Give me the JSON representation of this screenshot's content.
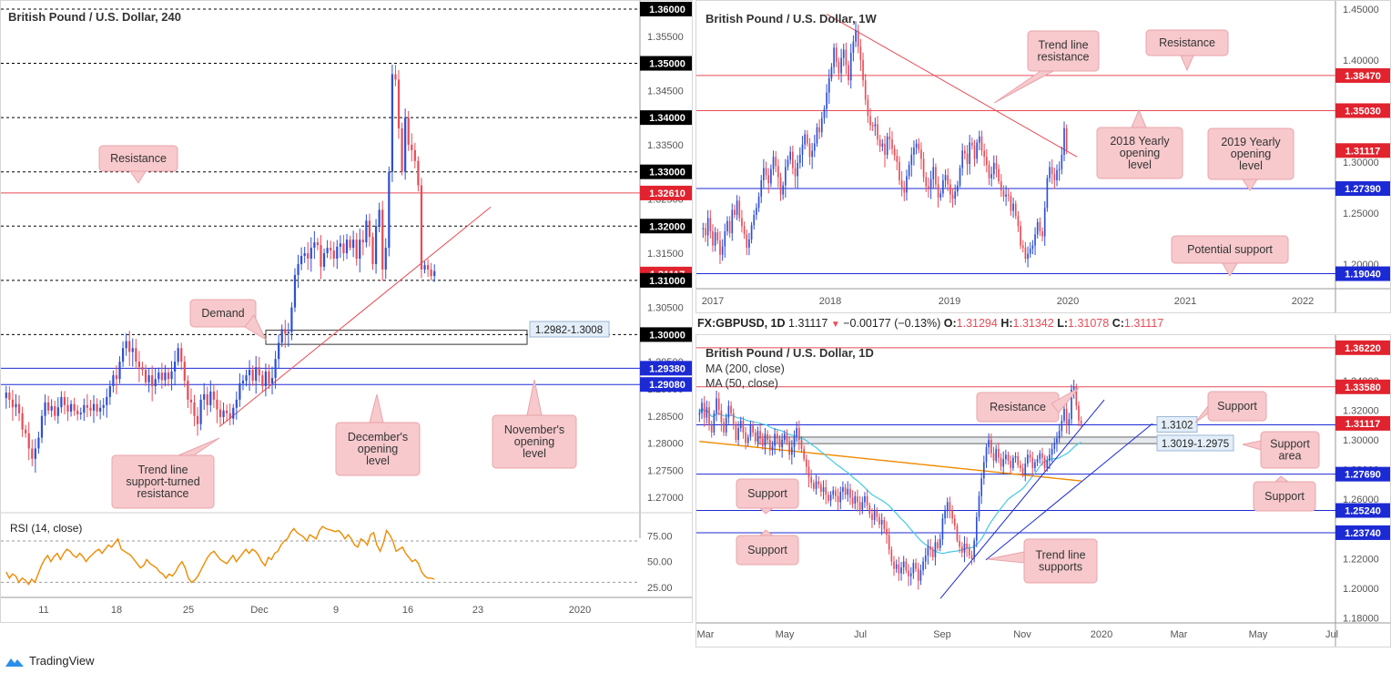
{
  "brand": {
    "name": "TradingView"
  },
  "colors": {
    "up": "#2d4fd6",
    "down": "#e84b56",
    "callout_fill": "#f7c9cc",
    "callout_border": "#e8a4aa",
    "label_red": "#e0232e",
    "label_blue": "#1c2ad4",
    "label_black": "#000000",
    "rsi": "#f08a00",
    "ma200": "#f08a00",
    "ma50": "#46c8e6"
  },
  "header_strip": {
    "symbol": "FX:GBPUSD, 1D",
    "last": "1.31117",
    "arrow": "▼",
    "change": "−0.00177 (−0.13%)",
    "o_label": "O:",
    "o": "1.31294",
    "h_label": "H:",
    "h": "1.31342",
    "l_label": "L:",
    "l": "1.31078",
    "c_label": "C:",
    "c": "1.31117"
  },
  "chart_data": [
    {
      "id": "h4",
      "type": "candlestick",
      "title": "British Pound / U.S. Dollar, 240",
      "ylim": [
        1.2675,
        1.3605
      ],
      "ticks": [
        "1.36000",
        "1.35500",
        "1.35000",
        "1.34500",
        "1.34000",
        "1.33500",
        "1.33000",
        "1.32500",
        "1.32000",
        "1.31500",
        "1.31000",
        "1.30500",
        "1.30000",
        "1.29500",
        "1.29000",
        "1.28500",
        "1.28000",
        "1.27500",
        "1.27000"
      ],
      "x_ticks": [
        "11",
        "18",
        "25",
        "Dec",
        "9",
        "16",
        "23",
        "2020"
      ],
      "levels": [
        {
          "value": 1.36,
          "label": "1.36000",
          "style": "black-dotted"
        },
        {
          "value": 1.35,
          "label": "1.35000",
          "style": "black-dotted"
        },
        {
          "value": 1.34,
          "label": "1.34000",
          "style": "black-dotted"
        },
        {
          "value": 1.33,
          "label": "1.33000",
          "style": "black-dotted"
        },
        {
          "value": 1.3261,
          "label": "1.32610",
          "style": "red"
        },
        {
          "value": 1.32,
          "label": "1.32000",
          "style": "black-dotted"
        },
        {
          "value": 1.31117,
          "label": "1.31117",
          "style": "red-tag-only"
        },
        {
          "value": 1.31,
          "label": "1.31000",
          "style": "black-dotted"
        },
        {
          "value": 1.3,
          "label": "1.30000",
          "style": "black-dotted"
        },
        {
          "value": 1.2938,
          "label": "1.29380",
          "style": "blue"
        },
        {
          "value": 1.2908,
          "label": "1.29080",
          "style": "blue"
        }
      ],
      "zone": {
        "label": "1.2982-1.3008",
        "from": 1.2982,
        "to": 1.3008
      },
      "callouts": [
        "Resistance",
        "Demand",
        "Trend line support-turned resistance",
        "December's opening level",
        "November's opening level"
      ],
      "closes": [
        1.2893,
        1.288,
        1.2866,
        1.2872,
        1.2855,
        1.2825,
        1.2818,
        1.279,
        1.2771,
        1.279,
        1.281,
        1.285,
        1.2875,
        1.286,
        1.2868,
        1.285,
        1.2866,
        1.2885,
        1.287,
        1.2858,
        1.2872,
        1.286,
        1.2853,
        1.2856,
        1.287,
        1.2865,
        1.286,
        1.2872,
        1.2858,
        1.2865,
        1.287,
        1.2885,
        1.2905,
        1.2925,
        1.2918,
        1.295,
        1.2975,
        1.2988,
        1.2968,
        1.2975,
        1.295,
        1.294,
        1.2935,
        1.2912,
        1.2925,
        1.2905,
        1.2918,
        1.293,
        1.2916,
        1.293,
        1.2918,
        1.2932,
        1.295,
        1.2975,
        1.295,
        1.2915,
        1.288,
        1.2875,
        1.285,
        1.2835,
        1.288,
        1.289,
        1.287,
        1.2895,
        1.288,
        1.2862,
        1.2848,
        1.286,
        1.2855,
        1.2845,
        1.2865,
        1.288,
        1.291,
        1.2915,
        1.2925,
        1.2935,
        1.2915,
        1.294,
        1.2925,
        1.2905,
        1.2932,
        1.291,
        1.292,
        1.2955,
        1.2985,
        1.301,
        1.3002,
        1.3005,
        1.305,
        1.311,
        1.313,
        1.3145,
        1.315,
        1.314,
        1.316,
        1.317,
        1.3165,
        1.3125,
        1.315,
        1.316,
        1.3155,
        1.314,
        1.3162,
        1.3168,
        1.315,
        1.3175,
        1.316,
        1.3175,
        1.314,
        1.3175,
        1.317,
        1.321,
        1.318,
        1.313,
        1.32,
        1.323,
        1.312,
        1.316,
        1.33,
        1.348,
        1.347,
        1.338,
        1.33,
        1.34,
        1.335,
        1.334,
        1.332,
        1.3275,
        1.312,
        1.3128,
        1.312,
        1.3108,
        1.3117
      ]
    },
    {
      "id": "rsi",
      "type": "line",
      "title": "RSI (14, close)",
      "ylim": [
        18,
        92
      ],
      "ticks": [
        "75.00",
        "50.00",
        "25.00"
      ],
      "levels": [
        70,
        30
      ],
      "values": [
        40,
        34,
        38,
        36,
        30,
        34,
        32,
        28,
        33,
        30,
        38,
        46,
        52,
        56,
        50,
        55,
        58,
        52,
        58,
        62,
        60,
        56,
        54,
        58,
        55,
        50,
        54,
        57,
        60,
        62,
        58,
        62,
        66,
        64,
        68,
        72,
        62,
        60,
        58,
        56,
        52,
        48,
        44,
        46,
        52,
        48,
        46,
        44,
        40,
        38,
        34,
        38,
        36,
        40,
        46,
        50,
        44,
        34,
        30,
        32,
        36,
        42,
        48,
        54,
        58,
        60,
        56,
        52,
        50,
        48,
        52,
        56,
        50,
        54,
        58,
        62,
        58,
        62,
        60,
        56,
        50,
        46,
        54,
        52,
        58,
        60,
        66,
        70,
        72,
        78,
        82,
        78,
        76,
        74,
        70,
        76,
        74,
        72,
        80,
        84,
        82,
        81,
        80,
        79,
        80,
        77,
        72,
        76,
        72,
        66,
        64,
        72,
        70,
        66,
        76,
        78,
        66,
        60,
        68,
        80,
        76,
        70,
        60,
        62,
        64,
        58,
        54,
        50,
        52,
        48,
        40,
        36,
        34,
        34,
        33
      ]
    },
    {
      "id": "w1",
      "type": "candlestick",
      "title": "British Pound / U.S. Dollar, 1W",
      "ylim": [
        1.1775,
        1.4525
      ],
      "ticks": [
        "1.45000",
        "1.40000",
        "1.35000",
        "1.30000",
        "1.25000",
        "1.20000"
      ],
      "x_ticks": [
        "2017",
        "2018",
        "2019",
        "2020",
        "2021",
        "2022"
      ],
      "levels": [
        {
          "value": 1.3847,
          "label": "1.38470",
          "style": "red"
        },
        {
          "value": 1.3503,
          "label": "1.35030",
          "style": "red"
        },
        {
          "value": 1.31117,
          "label": "1.31117",
          "style": "red-tag-only"
        },
        {
          "value": 1.2739,
          "label": "1.27390",
          "style": "blue"
        },
        {
          "value": 1.1904,
          "label": "1.19040",
          "style": "blue"
        }
      ],
      "callouts": [
        "Trend line resistance",
        "Resistance",
        "2018 Yearly opening level",
        "2019 Yearly opening level",
        "Potential support"
      ],
      "closes": [
        1.235,
        1.228,
        1.245,
        1.232,
        1.218,
        1.231,
        1.223,
        1.209,
        1.217,
        1.232,
        1.242,
        1.23,
        1.253,
        1.248,
        1.262,
        1.245,
        1.237,
        1.229,
        1.216,
        1.224,
        1.238,
        1.248,
        1.255,
        1.266,
        1.282,
        1.294,
        1.287,
        1.279,
        1.293,
        1.305,
        1.296,
        1.285,
        1.268,
        1.277,
        1.295,
        1.302,
        1.31,
        1.294,
        1.286,
        1.299,
        1.307,
        1.317,
        1.327,
        1.318,
        1.305,
        1.311,
        1.318,
        1.334,
        1.329,
        1.343,
        1.352,
        1.368,
        1.382,
        1.393,
        1.412,
        1.398,
        1.387,
        1.402,
        1.41,
        1.395,
        1.38,
        1.407,
        1.418,
        1.429,
        1.413,
        1.4,
        1.38,
        1.361,
        1.345,
        1.336,
        1.335,
        1.337,
        1.322,
        1.315,
        1.318,
        1.307,
        1.325,
        1.322,
        1.313,
        1.306,
        1.3,
        1.282,
        1.275,
        1.27,
        1.286,
        1.297,
        1.307,
        1.314,
        1.318,
        1.312,
        1.303,
        1.285,
        1.276,
        1.274,
        1.283,
        1.295,
        1.278,
        1.265,
        1.269,
        1.282,
        1.287,
        1.278,
        1.268,
        1.264,
        1.271,
        1.277,
        1.294,
        1.311,
        1.308,
        1.298,
        1.319,
        1.316,
        1.303,
        1.319,
        1.325,
        1.311,
        1.305,
        1.297,
        1.284,
        1.288,
        1.299,
        1.293,
        1.281,
        1.272,
        1.266,
        1.268,
        1.267,
        1.252,
        1.259,
        1.247,
        1.237,
        1.218,
        1.216,
        1.205,
        1.21,
        1.215,
        1.218,
        1.229,
        1.241,
        1.232,
        1.227,
        1.255,
        1.284,
        1.295,
        1.288,
        1.282,
        1.292,
        1.293,
        1.307,
        1.333,
        1.311
      ]
    },
    {
      "id": "d1",
      "type": "candlestick",
      "title": "British Pound / U.S. Dollar, 1D",
      "legend": [
        "MA (200, close)",
        "MA (50, close)"
      ],
      "ylim": [
        1.179,
        1.367
      ],
      "ticks": [
        "1.34000",
        "1.32000",
        "1.30000",
        "1.28000",
        "1.26000",
        "1.24000",
        "1.22000",
        "1.20000",
        "1.18000"
      ],
      "x_ticks": [
        "Mar",
        "May",
        "Jul",
        "Sep",
        "Nov",
        "2020",
        "Mar",
        "May",
        "Jul"
      ],
      "levels": [
        {
          "value": 1.3622,
          "label": "1.36220",
          "style": "red"
        },
        {
          "value": 1.3358,
          "label": "1.33580",
          "style": "red"
        },
        {
          "value": 1.31117,
          "label": "1.31117",
          "style": "red-tag-only"
        },
        {
          "value": 1.3102,
          "label": "1.3102",
          "style": "blue"
        },
        {
          "value": 1.2769,
          "label": "1.27690",
          "style": "blue"
        },
        {
          "value": 1.2524,
          "label": "1.25240",
          "style": "blue"
        },
        {
          "value": 1.2374,
          "label": "1.23740",
          "style": "blue"
        }
      ],
      "zone": {
        "label": "1.3019-1.2975",
        "from": 1.2975,
        "to": 1.3019
      },
      "callouts": [
        "Resistance",
        "Support",
        "Support area",
        "Support",
        "Support",
        "Support",
        "Trend line supports"
      ],
      "closes": [
        1.318,
        1.325,
        1.315,
        1.322,
        1.31,
        1.305,
        1.318,
        1.328,
        1.32,
        1.312,
        1.305,
        1.315,
        1.323,
        1.318,
        1.31,
        1.3,
        1.308,
        1.313,
        1.305,
        1.298,
        1.302,
        1.31,
        1.305,
        1.299,
        1.306,
        1.301,
        1.296,
        1.304,
        1.3,
        1.293,
        1.296,
        1.304,
        1.301,
        1.295,
        1.3,
        1.304,
        1.299,
        1.29,
        1.295,
        1.302,
        1.308,
        1.3,
        1.294,
        1.287,
        1.282,
        1.275,
        1.271,
        1.267,
        1.272,
        1.27,
        1.265,
        1.268,
        1.263,
        1.259,
        1.263,
        1.266,
        1.262,
        1.258,
        1.265,
        1.268,
        1.263,
        1.267,
        1.261,
        1.257,
        1.262,
        1.258,
        1.253,
        1.258,
        1.262,
        1.256,
        1.25,
        1.246,
        1.252,
        1.248,
        1.243,
        1.246,
        1.24,
        1.236,
        1.226,
        1.218,
        1.213,
        1.216,
        1.21,
        1.214,
        1.218,
        1.212,
        1.208,
        1.21,
        1.217,
        1.213,
        1.205,
        1.212,
        1.218,
        1.222,
        1.228,
        1.226,
        1.221,
        1.231,
        1.227,
        1.233,
        1.247,
        1.252,
        1.258,
        1.252,
        1.247,
        1.242,
        1.232,
        1.228,
        1.224,
        1.23,
        1.227,
        1.222,
        1.22,
        1.232,
        1.248,
        1.262,
        1.274,
        1.285,
        1.295,
        1.3,
        1.291,
        1.286,
        1.294,
        1.288,
        1.282,
        1.287,
        1.29,
        1.286,
        1.281,
        1.288,
        1.289,
        1.283,
        1.281,
        1.277,
        1.284,
        1.29,
        1.288,
        1.281,
        1.285,
        1.287,
        1.291,
        1.288,
        1.281,
        1.286,
        1.29,
        1.294,
        1.298,
        1.301,
        1.306,
        1.313,
        1.321,
        1.31,
        1.314,
        1.334,
        1.336,
        1.323,
        1.313,
        1.311
      ]
    }
  ]
}
